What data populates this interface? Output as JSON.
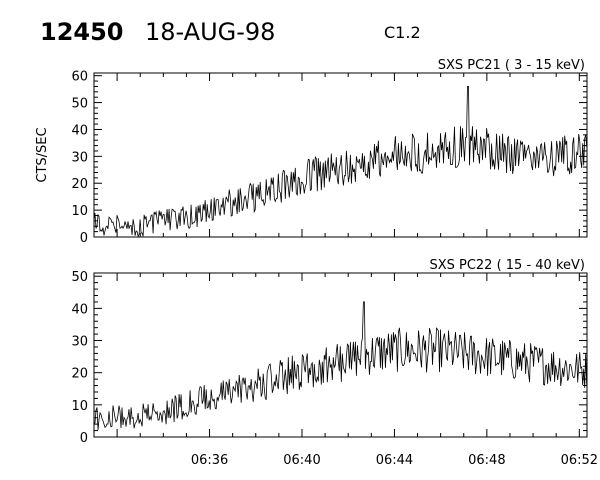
{
  "header": {
    "event_id": "12450",
    "date": "18-AUG-98",
    "flare_class": "C1.2"
  },
  "chart_data": [
    {
      "type": "line",
      "title": "SXS PC21  (  3 - 15 keV)",
      "ylabel": "CTS/SEC",
      "xlabel": "",
      "ylim": [
        0,
        61
      ],
      "yticks": [
        "0",
        "10",
        "20",
        "30",
        "40",
        "50",
        "60"
      ],
      "xlim": [
        "06:31",
        "06:52:20"
      ],
      "series": [
        {
          "x": [
            "06:31",
            "06:32",
            "06:33",
            "06:34",
            "06:35",
            "06:36",
            "06:37",
            "06:38",
            "06:39",
            "06:40",
            "06:41",
            "06:42",
            "06:43",
            "06:44",
            "06:45",
            "06:46",
            "06:47",
            "06:48",
            "06:49",
            "06:50",
            "06:51",
            "06:52"
          ],
          "values": [
            5,
            4,
            4,
            6,
            7,
            10,
            13,
            15,
            18,
            22,
            24,
            26,
            28,
            30,
            31,
            33,
            34,
            33,
            31,
            30,
            30,
            31
          ],
          "peak": {
            "x": "06:47:10",
            "value": 56
          },
          "noise_amplitude": 8
        }
      ]
    },
    {
      "type": "line",
      "title": "SXS PC22  ( 15 - 40 keV)",
      "ylabel": "",
      "xlabel": "",
      "ylim": [
        0,
        51
      ],
      "yticks": [
        "0",
        "10",
        "20",
        "30",
        "40",
        "50"
      ],
      "xlim": [
        "06:31",
        "06:52:20"
      ],
      "xticks": [
        "06:36",
        "06:40",
        "06:44",
        "06:48",
        "06:52"
      ],
      "series": [
        {
          "x": [
            "06:31",
            "06:32",
            "06:33",
            "06:34",
            "06:35",
            "06:36",
            "06:37",
            "06:38",
            "06:39",
            "06:40",
            "06:41",
            "06:42",
            "06:43",
            "06:44",
            "06:45",
            "06:46",
            "06:47",
            "06:48",
            "06:49",
            "06:50",
            "06:51",
            "06:52"
          ],
          "values": [
            6,
            6,
            7,
            8,
            10,
            12,
            14,
            16,
            18,
            21,
            22,
            24,
            26,
            27,
            27,
            27,
            26,
            25,
            24,
            23,
            22,
            21
          ],
          "peak": {
            "x": "06:42:40",
            "value": 42
          },
          "noise_amplitude": 7
        }
      ]
    }
  ]
}
